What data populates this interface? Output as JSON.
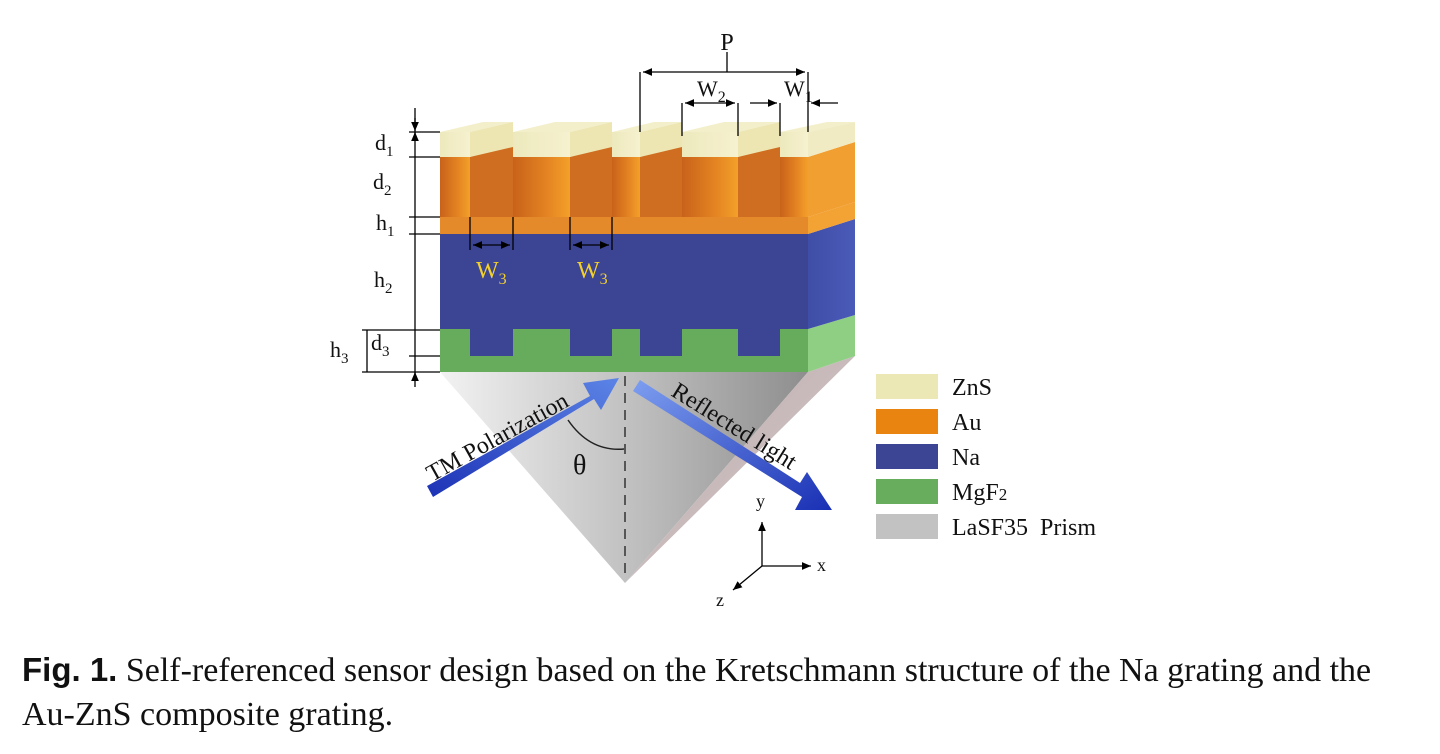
{
  "diagram": {
    "period_label": "P",
    "w1": "W",
    "w1_sub": "1",
    "w2": "W",
    "w2_sub": "2",
    "w3": "W",
    "w3_sub": "3",
    "d1": "d",
    "d1_sub": "1",
    "d2": "d",
    "d2_sub": "2",
    "d3": "d",
    "d3_sub": "3",
    "h1": "h",
    "h1_sub": "1",
    "h2": "h",
    "h2_sub": "2",
    "h3": "h",
    "h3_sub": "3",
    "incident_label": "TM Polarization",
    "reflected_label": "Reflected light",
    "angle_label": "θ",
    "axis_x": "x",
    "axis_y": "y",
    "axis_z": "z"
  },
  "legend": [
    {
      "label": "ZnS",
      "color": "#ece8b6"
    },
    {
      "label": "Au",
      "color": "#e8840f"
    },
    {
      "label": "Na",
      "color": "#3c4494"
    },
    {
      "label": "MgF",
      "sub": "2",
      "color": "#68ad5e"
    },
    {
      "label": "LaSF35  Prism",
      "color": "#c2c2c2"
    }
  ],
  "caption": {
    "label": "Fig. 1.",
    "text": "Self-referenced sensor design based on the Kretschmann structure of the Na grating and the Au-ZnS composite grating."
  }
}
